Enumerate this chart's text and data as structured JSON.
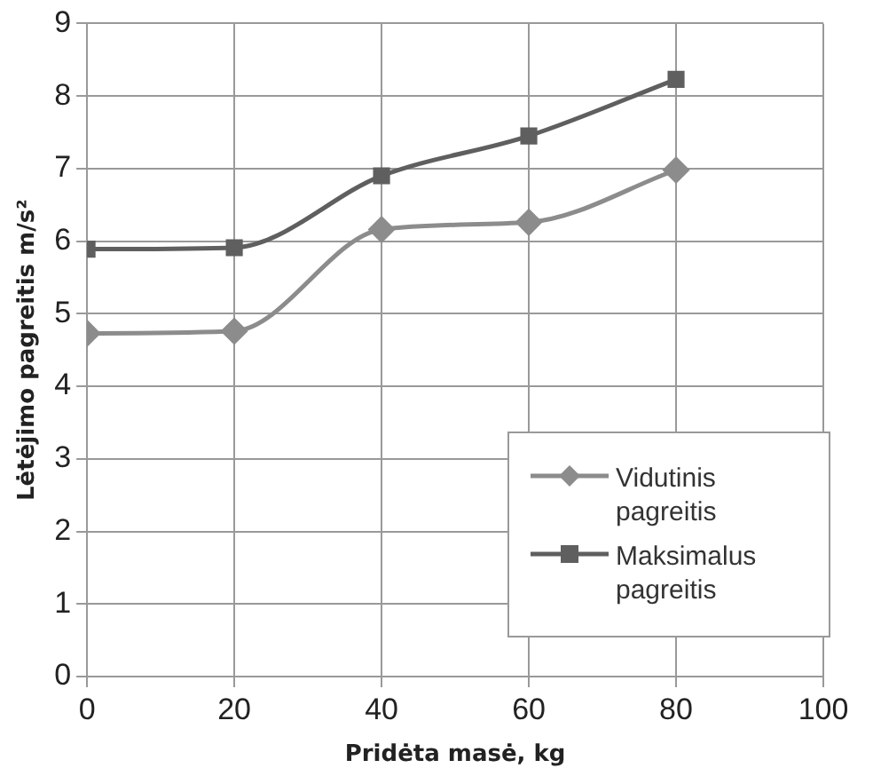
{
  "chart_data": {
    "type": "line",
    "xlabel": "Pridėta masė, kg",
    "ylabel": "Lėtėjimo pagreitis m/s²",
    "x": [
      0,
      20,
      40,
      60,
      80
    ],
    "series": [
      {
        "name": "Vidutinis pagreitis",
        "color": "#8c8c8c",
        "marker": "diamond",
        "values": [
          4.73,
          4.76,
          6.16,
          6.26,
          6.98
        ]
      },
      {
        "name": "Maksimalus pagreitis",
        "color": "#5f5f5f",
        "marker": "square",
        "values": [
          5.89,
          5.91,
          6.9,
          7.45,
          8.23
        ]
      }
    ],
    "xlim": [
      0,
      100
    ],
    "xticks": [
      0,
      20,
      40,
      60,
      80,
      100
    ],
    "ylim": [
      0,
      9
    ],
    "yticks": [
      0,
      1,
      2,
      3,
      4,
      5,
      6,
      7,
      8,
      9
    ],
    "grid": true,
    "legend": "bottom right"
  }
}
